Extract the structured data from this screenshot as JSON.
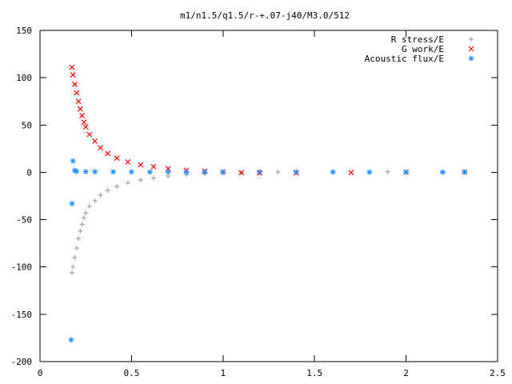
{
  "chart_data": {
    "type": "scatter",
    "title": "m1/n1.5/q1.5/r-+.07-j40/M3.0/512",
    "xlabel": "",
    "ylabel": "",
    "xlim": [
      0,
      2.5
    ],
    "ylim": [
      -200,
      150
    ],
    "xticks": [
      "0",
      "0.5",
      "1",
      "1.5",
      "2",
      "2.5"
    ],
    "yticks": [
      "150",
      "100",
      "50",
      "0",
      "-50",
      "-100",
      "-150",
      "-200"
    ],
    "legend": "top-right",
    "series": [
      {
        "name": "R stress/E",
        "marker": "plus",
        "color": "#a0a0a0",
        "points": [
          [
            0.175,
            -106
          ],
          [
            0.18,
            -100
          ],
          [
            0.19,
            -90
          ],
          [
            0.2,
            -80
          ],
          [
            0.21,
            -70
          ],
          [
            0.22,
            -62
          ],
          [
            0.23,
            -55
          ],
          [
            0.24,
            -48
          ],
          [
            0.25,
            -43
          ],
          [
            0.27,
            -36
          ],
          [
            0.3,
            -30
          ],
          [
            0.33,
            -24
          ],
          [
            0.37,
            -19
          ],
          [
            0.42,
            -15
          ],
          [
            0.48,
            -11
          ],
          [
            0.55,
            -8
          ],
          [
            0.62,
            -6
          ],
          [
            0.7,
            -4
          ],
          [
            0.8,
            -2.5
          ],
          [
            0.9,
            -1.5
          ],
          [
            1.0,
            -0.8
          ],
          [
            1.1,
            -0.3
          ],
          [
            1.3,
            0.2
          ],
          [
            1.6,
            0.5
          ],
          [
            1.9,
            0.6
          ],
          [
            2.2,
            0.4
          ],
          [
            2.32,
            0.5
          ]
        ]
      },
      {
        "name": "G work/E",
        "marker": "cross",
        "color": "#ff0000",
        "points": [
          [
            0.175,
            111
          ],
          [
            0.18,
            103
          ],
          [
            0.19,
            93
          ],
          [
            0.2,
            84
          ],
          [
            0.21,
            75
          ],
          [
            0.22,
            67
          ],
          [
            0.23,
            60
          ],
          [
            0.24,
            53
          ],
          [
            0.25,
            48
          ],
          [
            0.27,
            40
          ],
          [
            0.3,
            33
          ],
          [
            0.33,
            26
          ],
          [
            0.37,
            20
          ],
          [
            0.42,
            15
          ],
          [
            0.48,
            11
          ],
          [
            0.55,
            8
          ],
          [
            0.62,
            6
          ],
          [
            0.7,
            4
          ],
          [
            0.8,
            2.2
          ],
          [
            0.9,
            1.2
          ],
          [
            1.0,
            0.5
          ],
          [
            1.1,
            -0.3
          ],
          [
            1.2,
            -0.6
          ],
          [
            1.4,
            -0.5
          ],
          [
            1.7,
            -0.2
          ],
          [
            2.0,
            0.2
          ],
          [
            2.32,
            0.3
          ]
        ]
      },
      {
        "name": "Acoustic flux/E",
        "marker": "star",
        "color": "#1e90ff",
        "points": [
          [
            0.17,
            -177
          ],
          [
            0.175,
            -33
          ],
          [
            0.18,
            12
          ],
          [
            0.19,
            2
          ],
          [
            0.2,
            1
          ],
          [
            0.25,
            0.8
          ],
          [
            0.3,
            0.7
          ],
          [
            0.4,
            0.6
          ],
          [
            0.5,
            0.5
          ],
          [
            0.6,
            0.4
          ],
          [
            0.7,
            0.35
          ],
          [
            0.8,
            0.3
          ],
          [
            0.9,
            0.3
          ],
          [
            1.0,
            0.3
          ],
          [
            1.2,
            0.4
          ],
          [
            1.4,
            0.4
          ],
          [
            1.6,
            0.3
          ],
          [
            1.8,
            0.2
          ],
          [
            2.0,
            0.1
          ],
          [
            2.2,
            0.1
          ],
          [
            2.32,
            0.2
          ]
        ]
      }
    ]
  }
}
